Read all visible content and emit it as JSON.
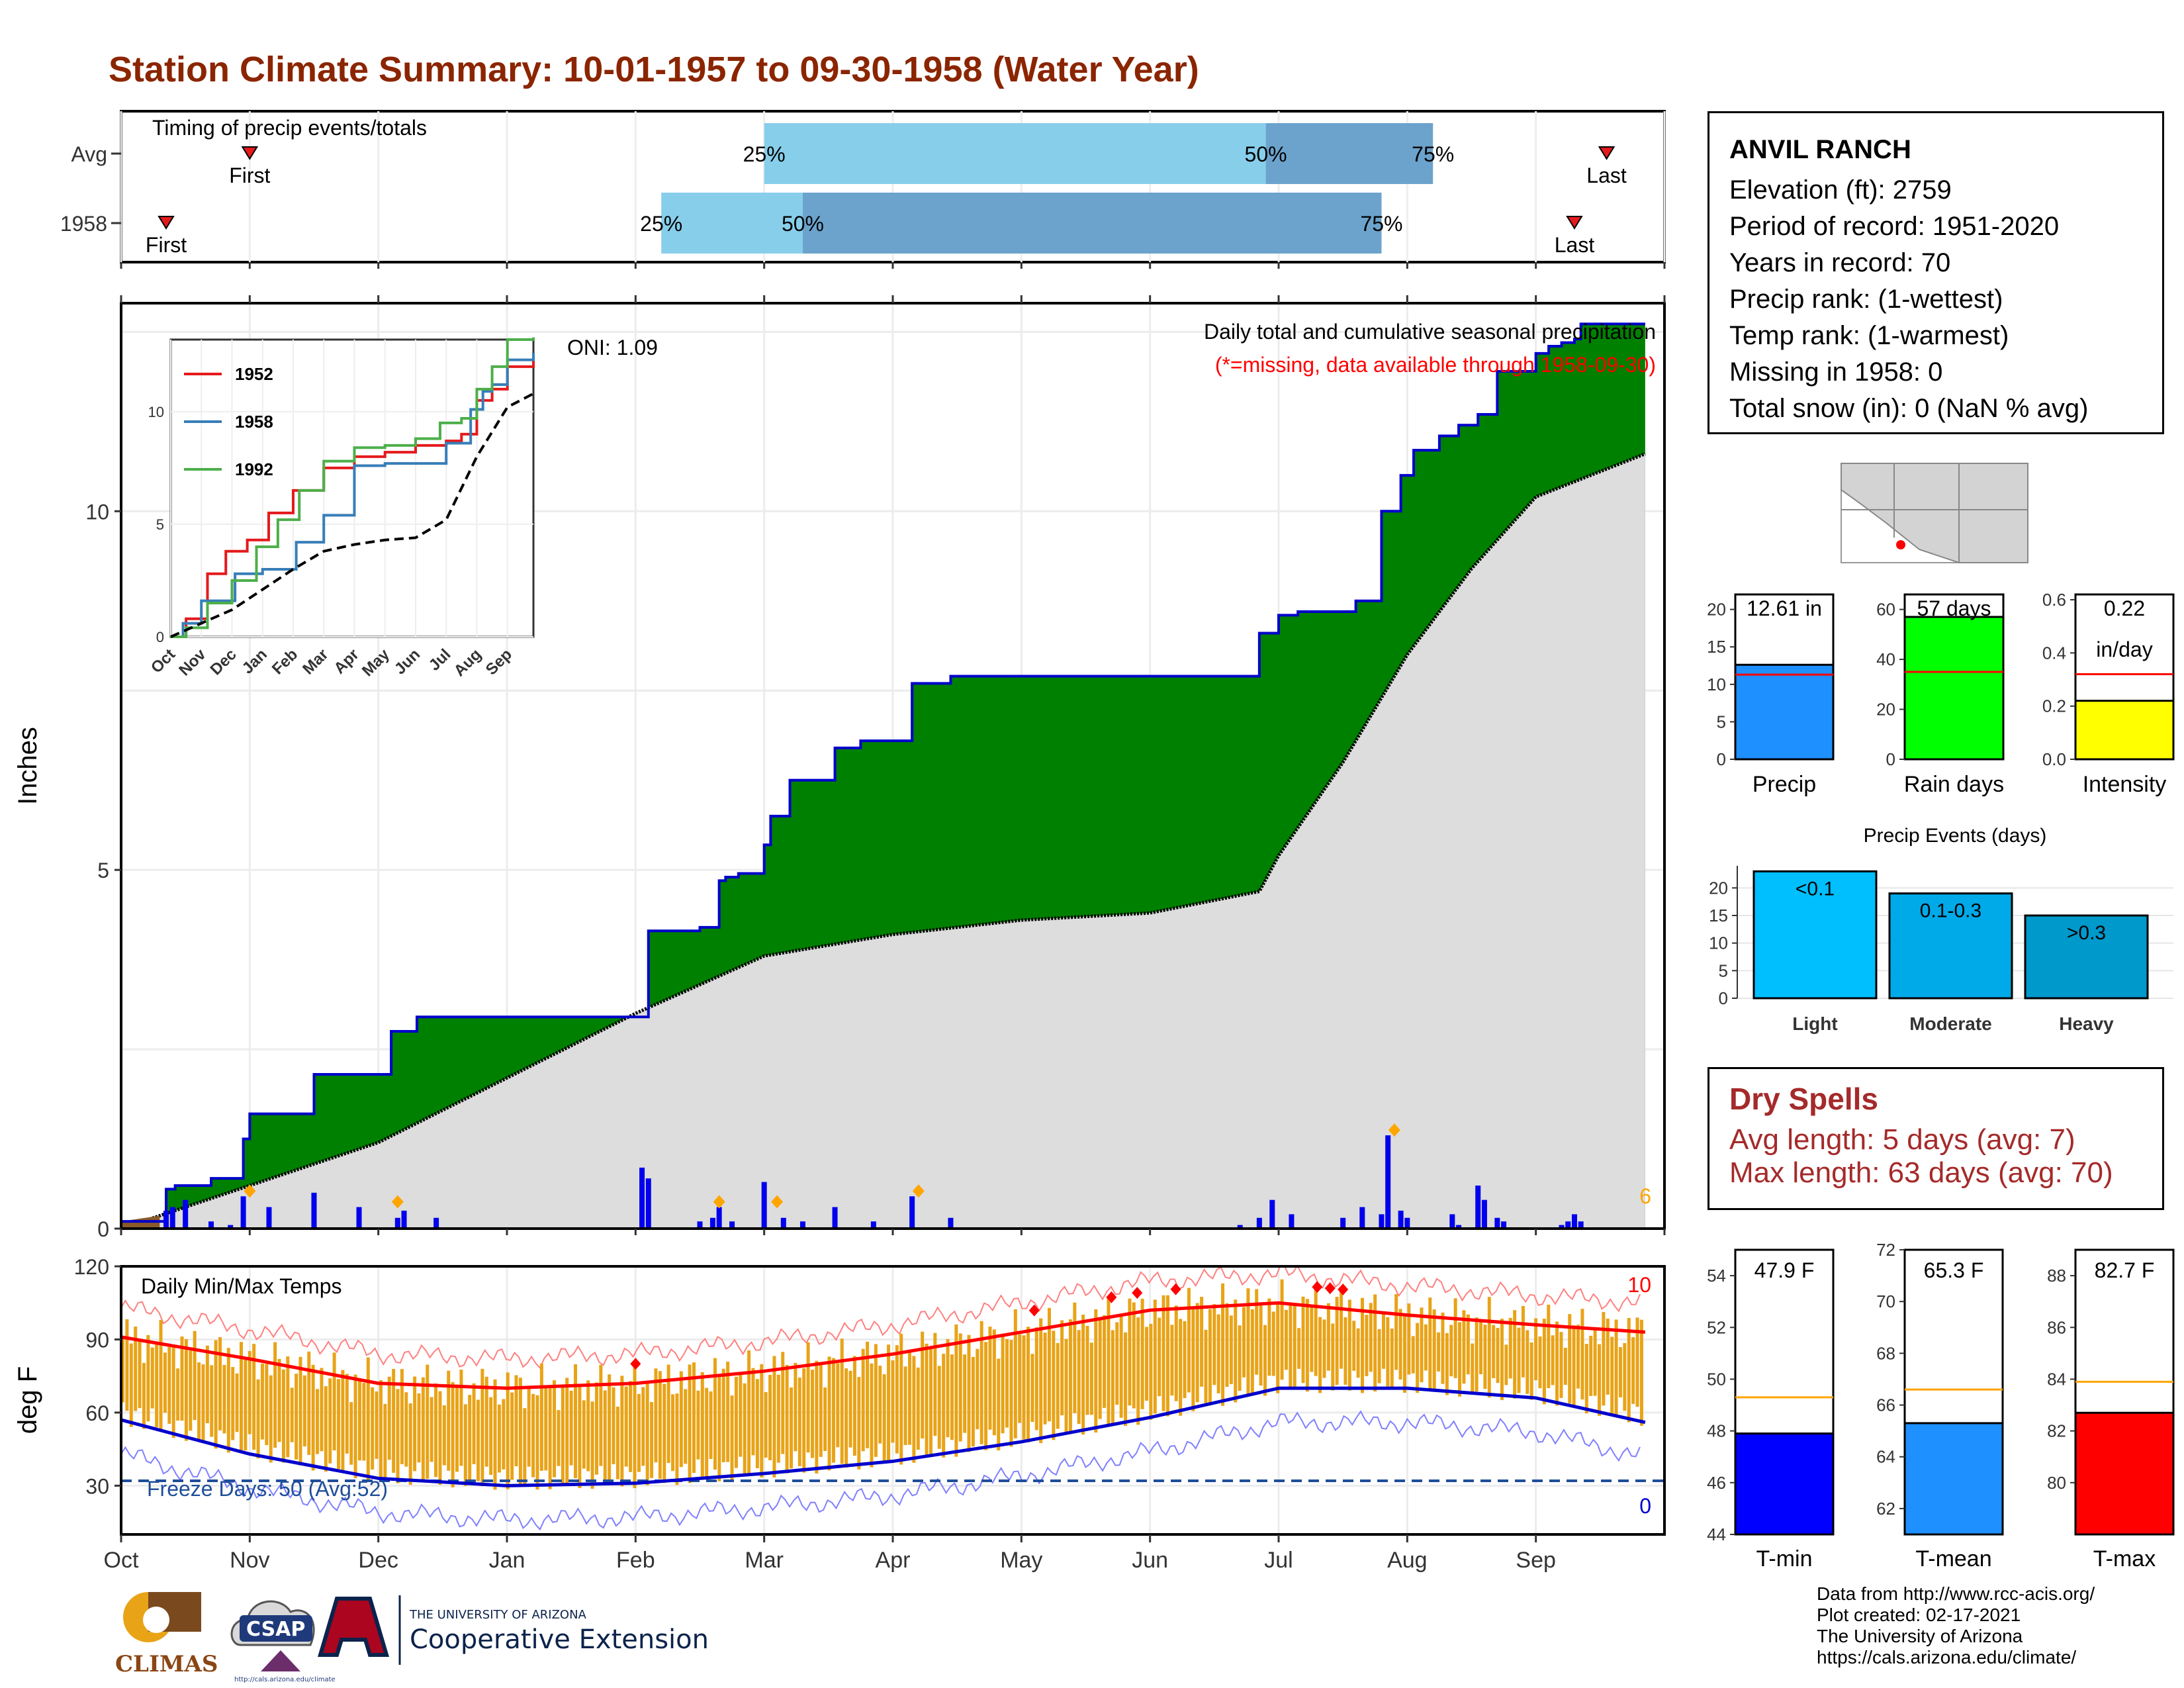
{
  "title": "Station Climate Summary: 10-01-1957 to 09-30-1958 (Water Year)",
  "colors": {
    "title": "#8B2500",
    "cum_area": "#008000",
    "cum_line": "#0000CC",
    "avg_area": "#DDDDDD",
    "daily_bar": "#0000EE",
    "event_marker": "#FFA500",
    "temp_bar": "#E8A317",
    "tmax_avg": "#FF0000",
    "tmin_avg": "#0000CC",
    "dry_text": "#A52A2A",
    "freeze_line": "#1F4E9A"
  },
  "station": {
    "name": "ANVIL RANCH",
    "elevation": "Elevation (ft): 2759",
    "period": "Period of record: 1951-2020",
    "years": "Years in record: 70",
    "precip_rank": "Precip rank:  (1-wettest)",
    "temp_rank": "Temp rank:  (1-warmest)",
    "missing": "Missing in 1958: 0",
    "snow": "Total snow (in): 0 (NaN % avg)"
  },
  "timing_panel": {
    "label": "Timing of precip events/totals",
    "rows": [
      {
        "name": "Avg",
        "first_month_frac": 1.0,
        "last_month_frac": 11.55,
        "q25": 5.0,
        "q50": 8.9,
        "q75": 10.2
      },
      {
        "name": "1958",
        "first_month_frac": 0.35,
        "last_month_frac": 11.3,
        "q25": 4.2,
        "q50": 5.3,
        "q75": 9.8
      }
    ],
    "labels": {
      "first": "First",
      "last": "Last",
      "p25": "25%",
      "p50": "50%",
      "p75": "75%"
    }
  },
  "precip_panel": {
    "ylabel": "Inches",
    "yticks": [
      "0",
      "5",
      "10"
    ],
    "header1": "Daily total and cumulative seasonal precipitation",
    "header2": "(*=missing, data available through 1958-09-30)",
    "oni": "ONI: 1.09",
    "count_label": "6"
  },
  "temp_panel": {
    "ylabel": "deg F",
    "yticks": [
      "30",
      "60",
      "90",
      "120"
    ],
    "label": "Daily Min/Max Temps",
    "freeze": "Freeze Days: 50 (Avg:52)",
    "count_hot": "10",
    "count_cold": "0"
  },
  "months": [
    "Oct",
    "Nov",
    "Dec",
    "Jan",
    "Feb",
    "Mar",
    "Apr",
    "May",
    "Jun",
    "Jul",
    "Aug",
    "Sep"
  ],
  "inset": {
    "months": [
      "Oct",
      "Nov",
      "Dec",
      "Jan",
      "Feb",
      "Mar",
      "Apr",
      "May",
      "Jun",
      "Jul",
      "Aug",
      "Sep"
    ],
    "yticks": [
      "0",
      "5",
      "10"
    ],
    "legend": [
      {
        "name": "1952",
        "color": "#E41A1C"
      },
      {
        "name": "1958",
        "color": "#377EB8"
      },
      {
        "name": "1992",
        "color": "#4DAF4A"
      }
    ]
  },
  "summary_bars": {
    "precip": {
      "label": "Precip",
      "value_text": "12.61 in",
      "value": 12.61,
      "avg": 11.3,
      "ymax": 22,
      "yticks": [
        "0",
        "5",
        "10",
        "15",
        "20"
      ],
      "color": "#1E90FF"
    },
    "rain_days": {
      "label": "Rain days",
      "value_text": "57 days",
      "value": 57,
      "avg": 35,
      "ymax": 66,
      "yticks": [
        "0",
        "20",
        "40",
        "60"
      ],
      "color": "#00FF00"
    },
    "intensity": {
      "label": "Intensity",
      "value_text": "0.22",
      "value_text2": "in/day",
      "value": 0.22,
      "avg": 0.32,
      "ymax": 0.62,
      "yticks": [
        "0.0",
        "0.2",
        "0.4",
        "0.6"
      ],
      "color": "#FFFF00"
    }
  },
  "precip_events": {
    "title": "Precip Events (days)",
    "yticks": [
      "0",
      "5",
      "10",
      "15",
      "20"
    ],
    "ymax": 24,
    "bars": [
      {
        "category": "Light",
        "label": "<0.1",
        "value": 23,
        "color": "#00BFFF"
      },
      {
        "category": "Moderate",
        "label": "0.1-0.3",
        "value": 19,
        "color": "#00AAE8"
      },
      {
        "category": "Heavy",
        "label": ">0.3",
        "value": 15,
        "color": "#0099CC"
      }
    ]
  },
  "dry_spells": {
    "title": "Dry Spells",
    "avg_length": "Avg length: 5 days (avg: 7)",
    "max_length": "Max length: 63 days (avg: 70)"
  },
  "temp_bars": [
    {
      "label": "T-min",
      "value_text": "47.9 F",
      "value": 47.9,
      "avg": 49.3,
      "ymin": 44,
      "ymax": 55,
      "yticks": [
        "44",
        "46",
        "48",
        "50",
        "52",
        "54"
      ],
      "color": "#0000FF"
    },
    {
      "label": "T-mean",
      "value_text": "65.3 F",
      "value": 65.3,
      "avg": 66.6,
      "ymin": 61,
      "ymax": 72,
      "yticks": [
        "62",
        "64",
        "66",
        "68",
        "70",
        "72"
      ],
      "color": "#1E90FF"
    },
    {
      "label": "T-max",
      "value_text": "82.7 F",
      "value": 82.7,
      "avg": 83.9,
      "ymin": 78,
      "ymax": 89,
      "yticks": [
        "80",
        "82",
        "84",
        "86",
        "88"
      ],
      "color": "#FF0000"
    }
  ],
  "credits": [
    "Data from http://www.rcc-acis.org/",
    "Plot created: 02-17-2021",
    "The University of Arizona",
    "https://cals.arizona.edu/climate/"
  ],
  "logos": {
    "climas": "CLIMAS",
    "csap": "CSAP",
    "csap_url": "http://cals.arizona.edu/climate",
    "ua_top": "THE UNIVERSITY OF ARIZONA",
    "ua_bottom": "Cooperative Extension"
  },
  "chart_data": [
    {
      "type": "area",
      "title": "Daily total and cumulative seasonal precipitation",
      "ylabel": "Inches",
      "ylim": [
        0,
        12.9
      ],
      "x_unit": "month of water year",
      "cumulative_1958": {
        "x": [
          0,
          0.35,
          0.42,
          0.7,
          0.95,
          1.0,
          1.5,
          2.1,
          2.3,
          2.45,
          3.5,
          4.05,
          4.1,
          4.5,
          4.65,
          4.7,
          4.8,
          5.0,
          5.05,
          5.2,
          5.55,
          5.75,
          6.15,
          6.45,
          6.6,
          7.3,
          7.5,
          8.2,
          8.85,
          9.0,
          9.15,
          9.6,
          9.8,
          9.95,
          10.05,
          10.25,
          10.4,
          10.55,
          10.7,
          11.0,
          11.1,
          11.2,
          11.3,
          11.35,
          11.85
        ],
        "y": [
          0.1,
          0.55,
          0.6,
          0.7,
          1.25,
          1.6,
          2.15,
          2.75,
          2.95,
          2.95,
          2.95,
          2.95,
          4.15,
          4.2,
          4.85,
          4.9,
          4.95,
          5.35,
          5.75,
          6.25,
          6.7,
          6.8,
          7.6,
          7.7,
          7.7,
          7.7,
          7.7,
          7.7,
          8.3,
          8.55,
          8.6,
          8.75,
          10.0,
          10.5,
          10.85,
          11.05,
          11.2,
          11.35,
          11.95,
          12.2,
          12.3,
          12.35,
          12.4,
          12.61,
          12.61
        ],
        "note": "step function, 12.61 in total"
      },
      "average_cumulative": {
        "x": [
          0,
          1,
          2,
          3,
          4,
          5,
          6,
          7,
          8,
          8.85,
          9,
          9.5,
          10,
          10.5,
          11,
          11.85
        ],
        "y": [
          0,
          0.6,
          1.2,
          2.1,
          3.0,
          3.8,
          4.1,
          4.3,
          4.4,
          4.7,
          5.2,
          6.5,
          8.0,
          9.2,
          10.2,
          10.8
        ]
      },
      "daily_precip": {
        "x": [
          0.35,
          0.4,
          0.5,
          0.7,
          0.85,
          0.95,
          1.15,
          1.5,
          1.85,
          2.15,
          2.2,
          2.45,
          4.05,
          4.1,
          4.5,
          4.6,
          4.65,
          4.75,
          5.0,
          5.15,
          5.3,
          5.55,
          5.85,
          6.15,
          6.45,
          8.7,
          8.85,
          8.95,
          9.1,
          9.5,
          9.65,
          9.8,
          9.85,
          9.95,
          10.0,
          10.35,
          10.4,
          10.55,
          10.6,
          10.7,
          10.75,
          11.2,
          11.25,
          11.3,
          11.35
        ],
        "y": [
          0.25,
          0.3,
          0.4,
          0.1,
          0.05,
          0.45,
          0.3,
          0.5,
          0.3,
          0.15,
          0.25,
          0.15,
          0.85,
          0.7,
          0.1,
          0.15,
          0.3,
          0.1,
          0.65,
          0.15,
          0.1,
          0.3,
          0.1,
          0.45,
          0.15,
          0.05,
          0.15,
          0.4,
          0.2,
          0.15,
          0.3,
          0.2,
          1.3,
          0.25,
          0.15,
          0.2,
          0.05,
          0.6,
          0.4,
          0.15,
          0.1,
          0.05,
          0.1,
          0.2,
          0.1
        ]
      },
      "event_markers_x": [
        1.0,
        2.15,
        4.65,
        5.1,
        6.2,
        9.9
      ]
    },
    {
      "type": "line",
      "title": "Daily Min/Max Temps",
      "ylabel": "deg F",
      "ylim": [
        10,
        120
      ],
      "x_unit": "month of water year",
      "avg_tmax": {
        "x": [
          0,
          1,
          2,
          3,
          4,
          5,
          6,
          7,
          8,
          9,
          10,
          11,
          11.85
        ],
        "y": [
          91,
          82,
          72,
          70,
          72,
          77,
          84,
          93,
          102,
          105,
          100,
          96,
          93
        ]
      },
      "avg_tmin": {
        "x": [
          0,
          1,
          2,
          3,
          4,
          5,
          6,
          7,
          8,
          9,
          10,
          11,
          11.85
        ],
        "y": [
          57,
          43,
          33,
          30,
          31,
          35,
          40,
          48,
          58,
          70,
          70,
          66,
          56
        ]
      },
      "freeze_line": 32,
      "record_highs_x": [
        4.0,
        7.1,
        7.7,
        7.9,
        8.2,
        9.3,
        9.4,
        9.5
      ]
    },
    {
      "type": "line",
      "title": "Cumulative precipitation comparison",
      "ylim": [
        0,
        13.2
      ],
      "series": [
        {
          "name": "1952",
          "x": [
            0,
            0.5,
            1.2,
            1.8,
            2.5,
            3.2,
            4.0,
            5.0,
            6.0,
            7.0,
            8.0,
            9.0,
            9.5,
            10.0,
            10.5,
            11.0,
            11.85
          ],
          "y": [
            0,
            0.8,
            2.8,
            3.8,
            4.3,
            5.5,
            6.5,
            7.5,
            8.0,
            8.2,
            8.5,
            8.7,
            9.0,
            10.5,
            11.0,
            12.0,
            12.5
          ]
        },
        {
          "name": "1958",
          "x": [
            0,
            0.4,
            1.0,
            2.1,
            3.0,
            4.1,
            5.0,
            6.0,
            7.0,
            8.0,
            9.0,
            9.8,
            10.2,
            10.5,
            11.0,
            11.85
          ],
          "y": [
            0,
            0.6,
            1.6,
            2.8,
            3.0,
            4.2,
            5.4,
            7.6,
            7.7,
            7.7,
            8.6,
            10.1,
            10.9,
            11.2,
            12.3,
            12.61
          ]
        },
        {
          "name": "1992",
          "x": [
            0,
            0.5,
            1.2,
            2.0,
            2.8,
            3.5,
            4.2,
            5.0,
            6.0,
            7.0,
            8.0,
            8.8,
            9.5,
            10.0,
            10.5,
            11.0,
            11.85
          ],
          "y": [
            0,
            0.4,
            1.5,
            2.5,
            4.0,
            5.2,
            6.5,
            7.8,
            8.4,
            8.5,
            8.8,
            9.5,
            9.7,
            11.0,
            12.0,
            13.2,
            13.3
          ]
        },
        {
          "name": "average",
          "x": [
            0,
            1,
            2,
            3,
            4,
            5,
            6,
            7,
            8,
            9,
            10,
            11,
            11.85
          ],
          "y": [
            0,
            0.6,
            1.2,
            2.1,
            3.0,
            3.8,
            4.1,
            4.3,
            4.4,
            5.2,
            8.0,
            10.2,
            10.8
          ]
        }
      ]
    }
  ]
}
